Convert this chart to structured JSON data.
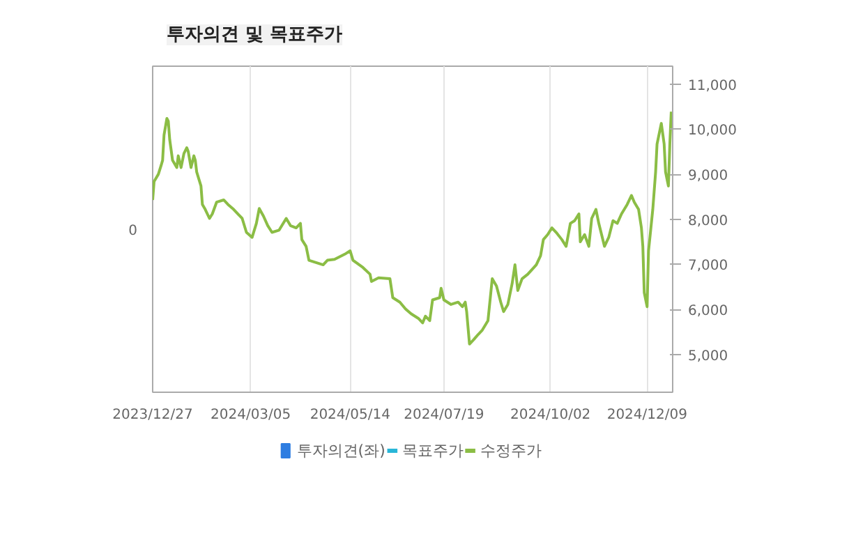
{
  "chart_data": {
    "type": "line",
    "title": "투자의견 및 목표주가",
    "xlim": [
      "2023-12-27",
      "2024-12-27"
    ],
    "xticks": [
      {
        "value": "2023-12-27",
        "label": "2023/12/27"
      },
      {
        "value": "2024-03-05",
        "label": "2024/03/05"
      },
      {
        "value": "2024-05-14",
        "label": "2024/05/14"
      },
      {
        "value": "2024-07-19",
        "label": "2024/07/19"
      },
      {
        "value": "2024-10-02",
        "label": "2024/10/02"
      },
      {
        "value": "2024-12-09",
        "label": "2024/12/09"
      }
    ],
    "annotations": [
      "0"
    ],
    "y2lim": [
      4160,
      11400
    ],
    "y2ticks": [
      {
        "value": 5000,
        "label": "5,000"
      },
      {
        "value": 6000,
        "label": "6,000"
      },
      {
        "value": 7000,
        "label": "7,000"
      },
      {
        "value": 8000,
        "label": "8,000"
      },
      {
        "value": 9000,
        "label": "9,000"
      },
      {
        "value": 10000,
        "label": "10,000"
      },
      {
        "value": 11000,
        "label": "11,000"
      }
    ],
    "grid": "x",
    "legend": "bottom",
    "marker": "none",
    "line_style": "solid",
    "series": [
      {
        "name": "투자의견(좌)",
        "type": "bar",
        "color": "#2e7de1"
      },
      {
        "name": "목표주가",
        "type": "line",
        "color": "#29b6d8",
        "axis": "y2"
      },
      {
        "name": "수정주가",
        "color": "#8bbd45",
        "axis": "y2",
        "x": [
          "2023-12-27",
          "2023-12-28",
          "2023-12-31",
          "2024-01-02",
          "2024-01-03",
          "2024-01-04",
          "2024-01-06",
          "2024-01-07",
          "2024-01-08",
          "2024-01-10",
          "2024-01-13",
          "2024-01-14",
          "2024-01-16",
          "2024-01-18",
          "2024-01-20",
          "2024-01-21",
          "2024-01-23",
          "2024-01-25",
          "2024-01-26",
          "2024-01-27",
          "2024-01-30",
          "2024-01-31",
          "2024-02-02",
          "2024-02-05",
          "2024-02-07",
          "2024-02-10",
          "2024-02-15",
          "2024-02-18",
          "2024-02-22",
          "2024-02-25",
          "2024-02-28",
          "2024-03-02",
          "2024-03-06",
          "2024-03-09",
          "2024-03-11",
          "2024-03-14",
          "2024-03-17",
          "2024-03-20",
          "2024-03-25",
          "2024-03-30",
          "2024-04-02",
          "2024-04-06",
          "2024-04-09",
          "2024-04-10",
          "2024-04-13",
          "2024-04-15",
          "2024-04-20",
          "2024-04-25",
          "2024-04-28",
          "2024-05-03",
          "2024-05-11",
          "2024-05-14",
          "2024-05-16",
          "2024-05-23",
          "2024-05-28",
          "2024-05-29",
          "2024-06-03",
          "2024-06-11",
          "2024-06-13",
          "2024-06-18",
          "2024-06-22",
          "2024-06-26",
          "2024-07-01",
          "2024-07-04",
          "2024-07-06",
          "2024-07-09",
          "2024-07-11",
          "2024-07-16",
          "2024-07-17",
          "2024-07-19",
          "2024-07-24",
          "2024-07-29",
          "2024-08-01",
          "2024-08-03",
          "2024-08-04",
          "2024-08-06",
          "2024-08-09",
          "2024-08-12",
          "2024-08-15",
          "2024-08-19",
          "2024-08-22",
          "2024-08-25",
          "2024-08-28",
          "2024-08-30",
          "2024-09-02",
          "2024-09-05",
          "2024-09-07",
          "2024-09-09",
          "2024-09-12",
          "2024-09-16",
          "2024-09-22",
          "2024-09-25",
          "2024-09-27",
          "2024-09-30",
          "2024-10-03",
          "2024-10-06",
          "2024-10-10",
          "2024-10-13",
          "2024-10-16",
          "2024-10-19",
          "2024-10-22",
          "2024-10-23",
          "2024-10-26",
          "2024-10-29",
          "2024-10-31",
          "2024-11-03",
          "2024-11-05",
          "2024-11-09",
          "2024-11-12",
          "2024-11-15",
          "2024-11-18",
          "2024-11-21",
          "2024-11-25",
          "2024-11-28",
          "2024-11-30",
          "2024-12-03",
          "2024-12-05",
          "2024-12-06",
          "2024-12-07",
          "2024-12-09",
          "2024-12-10",
          "2024-12-11",
          "2024-12-13",
          "2024-12-15",
          "2024-12-16",
          "2024-12-19",
          "2024-12-21",
          "2024-12-22",
          "2024-12-24",
          "2024-12-25",
          "2024-12-26"
        ],
        "values": [
          8430,
          8840,
          9000,
          9200,
          9310,
          9870,
          10240,
          10180,
          9770,
          9310,
          9150,
          9410,
          9150,
          9460,
          9590,
          9510,
          9150,
          9410,
          9310,
          9050,
          8740,
          8330,
          8220,
          8020,
          8120,
          8380,
          8430,
          8330,
          8220,
          8120,
          8020,
          7710,
          7600,
          7910,
          8240,
          8070,
          7860,
          7710,
          7760,
          8020,
          7860,
          7810,
          7910,
          7550,
          7400,
          7090,
          7040,
          6990,
          7090,
          7110,
          7240,
          7300,
          7090,
          6930,
          6780,
          6620,
          6700,
          6680,
          6260,
          6160,
          6010,
          5900,
          5800,
          5700,
          5850,
          5750,
          6210,
          6260,
          6470,
          6210,
          6110,
          6160,
          6060,
          6160,
          5950,
          5230,
          5330,
          5440,
          5540,
          5750,
          6680,
          6520,
          6160,
          5950,
          6110,
          6570,
          6990,
          6420,
          6680,
          6780,
          6990,
          7190,
          7550,
          7660,
          7810,
          7710,
          7550,
          7400,
          7910,
          7970,
          8120,
          7500,
          7660,
          7400,
          8020,
          8220,
          7910,
          7400,
          7600,
          7970,
          7910,
          8120,
          8330,
          8530,
          8380,
          8220,
          7810,
          7400,
          6370,
          6060,
          7300,
          7600,
          8220,
          9050,
          9670,
          10130,
          9670,
          9050,
          8740,
          9670,
          10390
        ]
      }
    ]
  }
}
